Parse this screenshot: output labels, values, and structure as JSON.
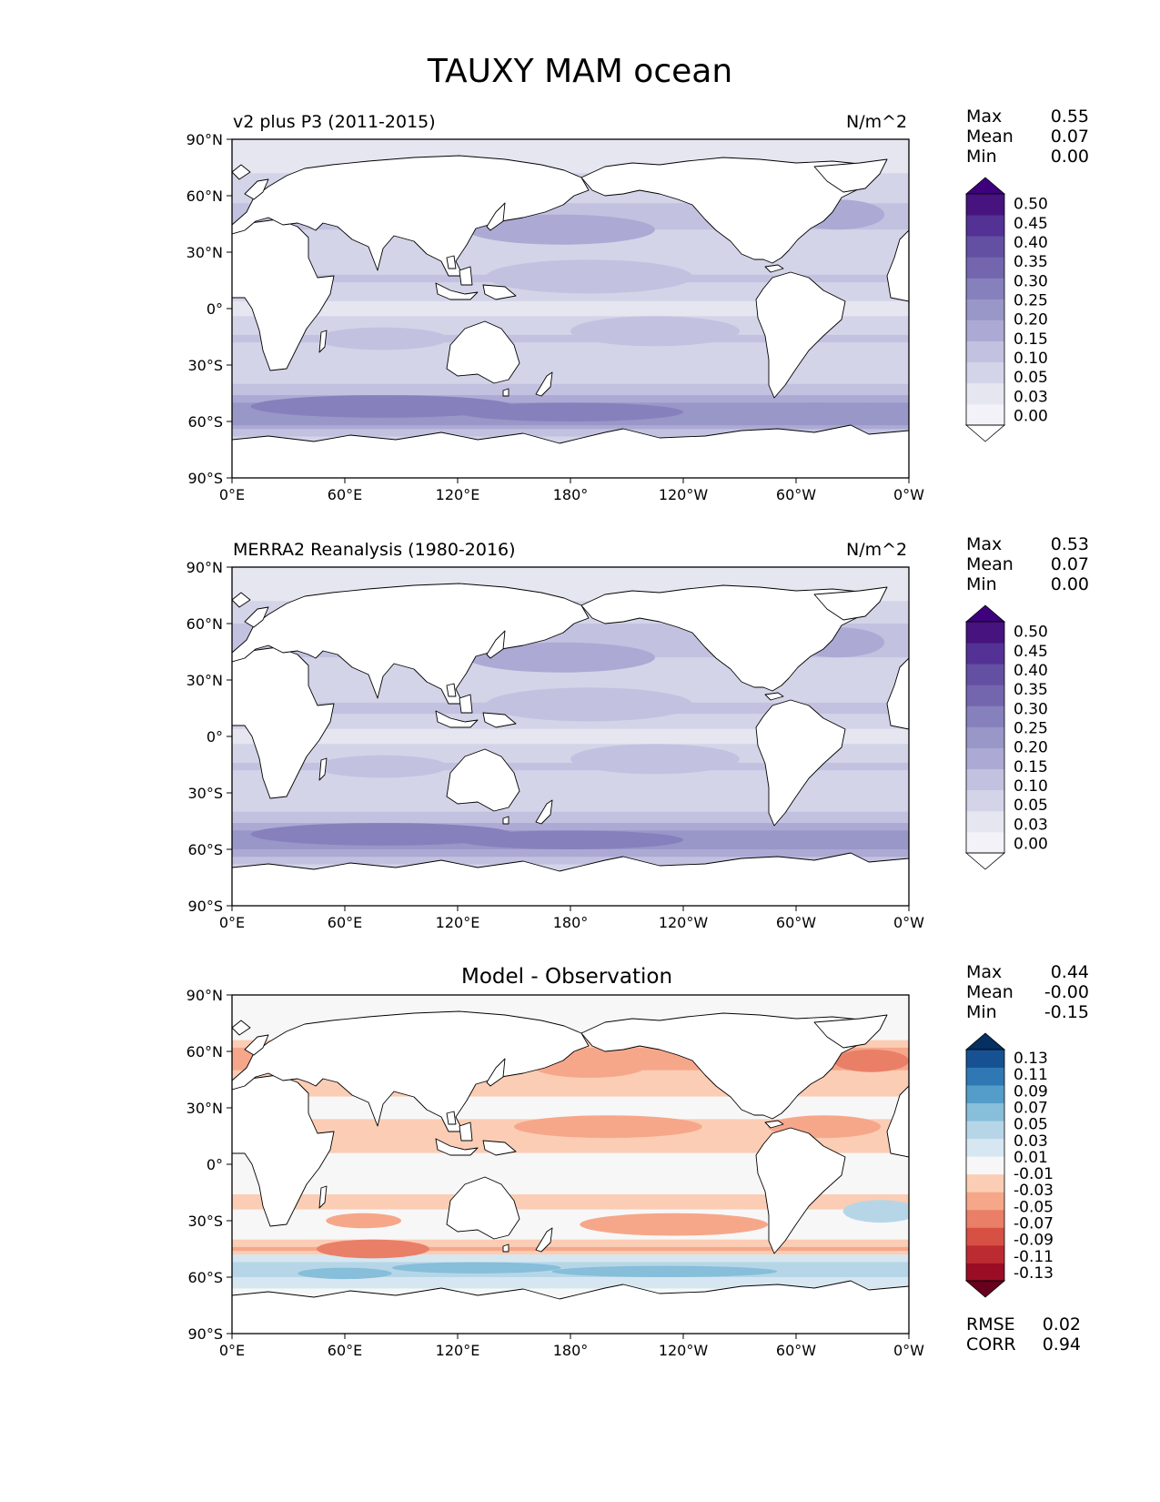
{
  "title": "TAUXY MAM ocean",
  "stat_labels": {
    "max": "Max",
    "mean": "Mean",
    "min": "Min",
    "rmse": "RMSE",
    "corr": "CORR"
  },
  "panels": [
    {
      "id": "model",
      "left_title": "v2 plus P3 (2011-2015)",
      "right_title": "N/m^2",
      "center_title": "",
      "stats": {
        "max": "0.55",
        "mean": "0.07",
        "min": "0.00"
      }
    },
    {
      "id": "obs",
      "left_title": "MERRA2 Reanalysis (1980-2016)",
      "right_title": "N/m^2",
      "center_title": "",
      "stats": {
        "max": "0.53",
        "mean": "0.07",
        "min": "0.00"
      }
    },
    {
      "id": "diff",
      "left_title": "",
      "right_title": "",
      "center_title": "Model - Observation",
      "stats": {
        "max": "0.44",
        "mean": "-0.00",
        "min": "-0.15"
      },
      "metrics": {
        "rmse": "0.02",
        "corr": "0.94"
      }
    }
  ],
  "chart_data": [
    {
      "type": "heatmap",
      "projection": "plate-carree",
      "title": "v2 plus P3 (2011-2015)",
      "units": "N/m^2",
      "x_ticks": [
        "0°E",
        "60°E",
        "120°E",
        "180°",
        "120°W",
        "60°W",
        "0°W"
      ],
      "y_ticks": [
        "90°N",
        "60°N",
        "30°N",
        "0°",
        "30°S",
        "60°S",
        "90°S"
      ],
      "colorbar": {
        "levels": [
          "0.00",
          "0.03",
          "0.05",
          "0.10",
          "0.15",
          "0.20",
          "0.25",
          "0.30",
          "0.35",
          "0.40",
          "0.45",
          "0.50"
        ],
        "colors": [
          "#ffffff",
          "#f2f2f8",
          "#e6e6f1",
          "#d4d4e9",
          "#c2c2e0",
          "#acaad4",
          "#9996c8",
          "#8680bc",
          "#7465af",
          "#6450a3",
          "#543295",
          "#46137f",
          "#3f007d"
        ]
      },
      "zonal_profile": [
        [
          -70,
          0.06
        ],
        [
          -60,
          0.22
        ],
        [
          -55,
          0.24
        ],
        [
          -50,
          0.2
        ],
        [
          -45,
          0.14
        ],
        [
          -35,
          0.06
        ],
        [
          -28,
          0.05
        ],
        [
          -15,
          0.11
        ],
        [
          -5,
          0.05
        ],
        [
          0,
          0.04
        ],
        [
          5,
          0.05
        ],
        [
          15,
          0.11
        ],
        [
          22,
          0.08
        ],
        [
          30,
          0.05
        ],
        [
          38,
          0.07
        ],
        [
          45,
          0.12
        ],
        [
          52,
          0.11
        ],
        [
          60,
          0.09
        ],
        [
          72,
          0.05
        ],
        [
          80,
          0.03
        ]
      ]
    },
    {
      "type": "heatmap",
      "projection": "plate-carree",
      "title": "MERRA2 Reanalysis (1980-2016)",
      "units": "N/m^2",
      "x_ticks": [
        "0°E",
        "60°E",
        "120°E",
        "180°",
        "120°W",
        "60°W",
        "0°W"
      ],
      "y_ticks": [
        "90°N",
        "60°N",
        "30°N",
        "0°",
        "30°S",
        "60°S",
        "90°S"
      ],
      "colorbar": {
        "levels": [
          "0.00",
          "0.03",
          "0.05",
          "0.10",
          "0.15",
          "0.20",
          "0.25",
          "0.30",
          "0.35",
          "0.40",
          "0.45",
          "0.50"
        ],
        "colors": [
          "#ffffff",
          "#f2f2f8",
          "#e6e6f1",
          "#d4d4e9",
          "#c2c2e0",
          "#acaad4",
          "#9996c8",
          "#8680bc",
          "#7465af",
          "#6450a3",
          "#543295",
          "#46137f",
          "#3f007d"
        ]
      },
      "zonal_profile": [
        [
          -70,
          0.06
        ],
        [
          -60,
          0.2
        ],
        [
          -55,
          0.23
        ],
        [
          -50,
          0.2
        ],
        [
          -45,
          0.14
        ],
        [
          -35,
          0.06
        ],
        [
          -28,
          0.05
        ],
        [
          -15,
          0.11
        ],
        [
          -5,
          0.05
        ],
        [
          0,
          0.04
        ],
        [
          5,
          0.05
        ],
        [
          15,
          0.12
        ],
        [
          22,
          0.08
        ],
        [
          30,
          0.05
        ],
        [
          38,
          0.07
        ],
        [
          45,
          0.12
        ],
        [
          52,
          0.12
        ],
        [
          60,
          0.1
        ],
        [
          72,
          0.05
        ],
        [
          80,
          0.03
        ]
      ]
    },
    {
      "type": "heatmap",
      "projection": "plate-carree",
      "title": "Model - Observation",
      "x_ticks": [
        "0°E",
        "60°E",
        "120°E",
        "180°",
        "120°W",
        "60°W",
        "0°W"
      ],
      "y_ticks": [
        "90°N",
        "60°N",
        "30°N",
        "0°",
        "30°S",
        "60°S",
        "90°S"
      ],
      "colorbar": {
        "levels": [
          "-0.13",
          "-0.11",
          "-0.09",
          "-0.07",
          "-0.05",
          "-0.03",
          "-0.01",
          "0.01",
          "0.03",
          "0.05",
          "0.07",
          "0.09",
          "0.11",
          "0.13"
        ],
        "colors": [
          "#67001f",
          "#9a0d25",
          "#bd2b32",
          "#d65043",
          "#ea7f68",
          "#f6a78a",
          "#fbcdb5",
          "#f7f7f7",
          "#d6e7f1",
          "#b6d6e8",
          "#87beda",
          "#539dc8",
          "#2f78b4",
          "#165293",
          "#053061"
        ]
      },
      "zonal_profile": [
        [
          -70,
          0.0
        ],
        [
          -60,
          0.03
        ],
        [
          -55,
          0.04
        ],
        [
          -50,
          0.02
        ],
        [
          -45,
          -0.03
        ],
        [
          -40,
          -0.01
        ],
        [
          -30,
          0.0
        ],
        [
          -20,
          -0.02
        ],
        [
          -10,
          0.01
        ],
        [
          0,
          0.0
        ],
        [
          10,
          -0.02
        ],
        [
          20,
          -0.03
        ],
        [
          30,
          0.01
        ],
        [
          40,
          -0.03
        ],
        [
          50,
          -0.03
        ],
        [
          60,
          -0.04
        ],
        [
          70,
          0.01
        ],
        [
          80,
          0.0
        ]
      ]
    }
  ]
}
